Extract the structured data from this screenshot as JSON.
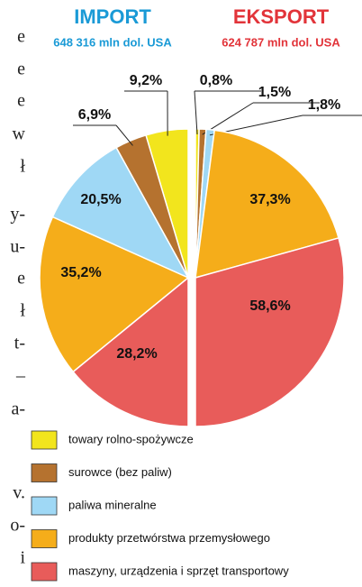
{
  "margin_text": [
    "e",
    "e",
    "e",
    "w",
    "ł",
    "y-",
    "u-",
    "e",
    "ł",
    "t-",
    "–",
    "a-",
    "v.",
    "o-",
    "i"
  ],
  "chart_data": {
    "type": "pie",
    "categories": [
      "towary rolno-spożywcze",
      "surowce (bez paliw)",
      "paliwa mineralne",
      "produkty przetwórstwa przemysłowego",
      "maszyny, urządzenia i sprzęt transportowy"
    ],
    "colors": [
      "#f2e51d",
      "#b5722f",
      "#9fd8f5",
      "#f5ad1a",
      "#e85c5a"
    ],
    "series": [
      {
        "name": "IMPORT",
        "total_label": "648 316 mln dol. USA",
        "color": "#1a9ad6",
        "values": [
          9.2,
          6.9,
          20.5,
          35.2,
          28.2
        ],
        "value_labels": [
          "9,2%",
          "6,9%",
          "20,5%",
          "35,2%",
          "28,2%"
        ]
      },
      {
        "name": "EKSPORT",
        "total_label": "624 787 mln dol. USA",
        "color": "#e2343a",
        "values": [
          0.8,
          1.5,
          1.8,
          37.3,
          58.6
        ],
        "value_labels": [
          "0,8%",
          "1,5%",
          "1,8%",
          "37,3%",
          "58,6%"
        ]
      }
    ]
  }
}
